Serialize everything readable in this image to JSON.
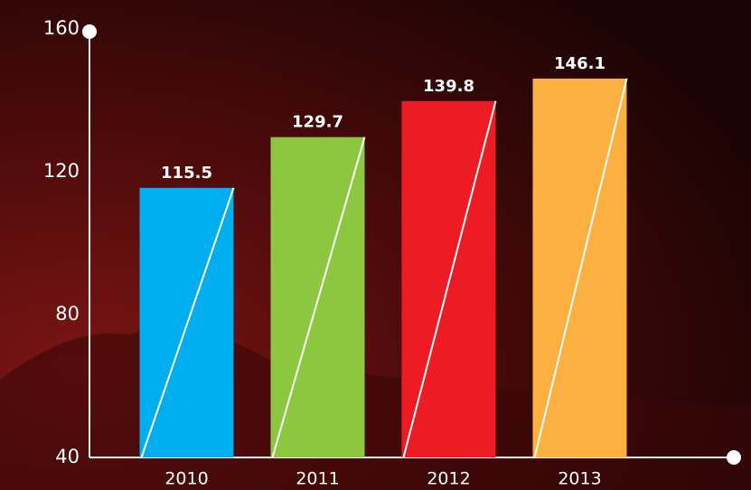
{
  "chart_data": {
    "type": "bar",
    "categories": [
      "2010",
      "2011",
      "2012",
      "2013"
    ],
    "values": [
      115.5,
      129.7,
      139.8,
      146.1
    ],
    "colors": [
      "#00aeef",
      "#8dc63f",
      "#ed1c24",
      "#fbb040"
    ],
    "ylim": [
      40,
      160
    ],
    "yticks": [
      40,
      80,
      120,
      160
    ]
  }
}
